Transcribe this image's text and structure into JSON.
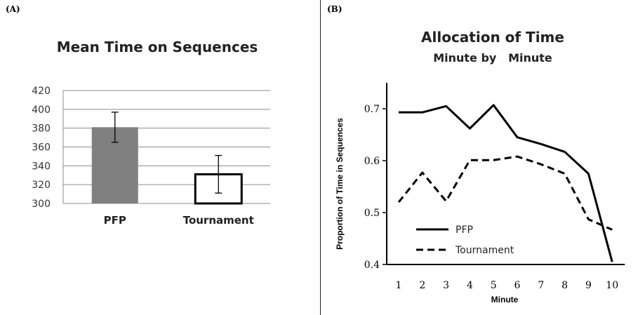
{
  "panel_a": {
    "label": "(A)"
  },
  "panel_b": {
    "label": "(B)"
  },
  "chart_data": [
    {
      "type": "bar",
      "title": "Mean Time on Sequences",
      "categories": [
        "PFP",
        "Tournament"
      ],
      "values": [
        381,
        331
      ],
      "error_low": [
        365,
        311
      ],
      "error_high": [
        397,
        351
      ],
      "ylim": [
        300,
        420
      ],
      "yticks": [
        300,
        320,
        340,
        360,
        380,
        400,
        420
      ],
      "grid": true,
      "colors": {
        "PFP": "#808080",
        "Tournament": "#ffffff"
      }
    },
    {
      "type": "line",
      "title": "Allocation of Time",
      "subtitle": "Minute by   Minute",
      "xlabel": "Minute",
      "ylabel": "Proportion of Time in Sequences",
      "x": [
        1,
        2,
        3,
        4,
        5,
        6,
        7,
        8,
        9,
        10
      ],
      "ylim": [
        0.4,
        0.75
      ],
      "yticks": [
        "0.4",
        "0.5",
        "0.6",
        "0.7"
      ],
      "legend_position": "bottom-left",
      "series": [
        {
          "name": "PFP",
          "style": "solid",
          "values": [
            0.693,
            0.693,
            0.705,
            0.662,
            0.707,
            0.645,
            0.632,
            0.617,
            0.575,
            0.405
          ]
        },
        {
          "name": "Tournament",
          "style": "dashed",
          "values": [
            0.52,
            0.577,
            0.522,
            0.601,
            0.601,
            0.608,
            0.593,
            0.575,
            0.487,
            0.467
          ]
        }
      ]
    }
  ]
}
